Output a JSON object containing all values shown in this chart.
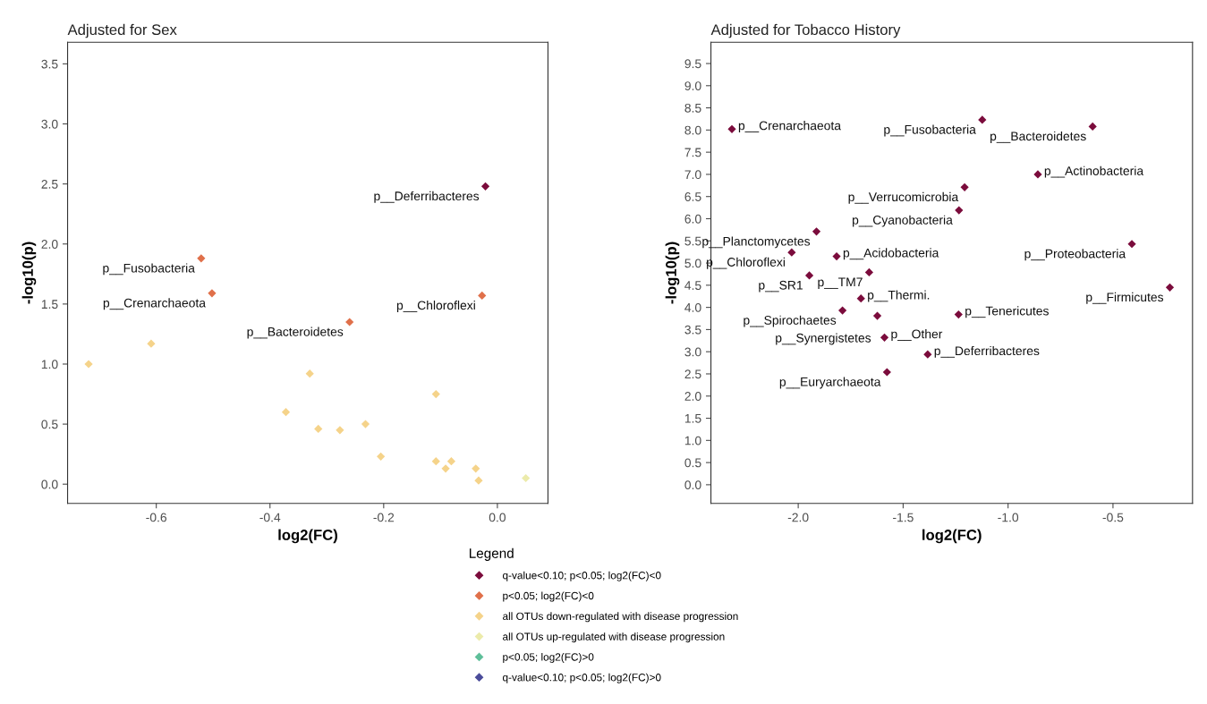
{
  "chart_data": [
    {
      "type": "scatter",
      "title": "Adjusted for Sex",
      "xlabel": "log2(FC)",
      "ylabel": "-log10(p)",
      "marker": "diamond",
      "grid": false,
      "legend": false,
      "xlim": [
        -0.756,
        0.089
      ],
      "ylim": [
        -0.16,
        3.68
      ],
      "xticks": [
        -0.6,
        -0.4,
        -0.2,
        {
          "value": 0,
          "label": "0.0"
        }
      ],
      "yticks": [
        {
          "value": 0,
          "label": "0.0"
        },
        0.5,
        {
          "value": 1,
          "label": "1.0"
        },
        1.5,
        {
          "value": 2,
          "label": "2.0"
        },
        2.5,
        {
          "value": 3,
          "label": "3.0"
        },
        3.5
      ],
      "series": [
        {
          "color": "#7b0c3c",
          "x": [
            -0.021
          ],
          "values": [
            2.48
          ]
        },
        {
          "color": "#e0704a",
          "x": [
            -0.521,
            -0.502,
            -0.027,
            -0.26
          ],
          "values": [
            1.88,
            1.59,
            1.57,
            1.35
          ]
        },
        {
          "color": "#f5d38a",
          "x": [
            -0.719,
            -0.609,
            -0.33,
            -0.372,
            -0.315,
            -0.277,
            -0.232,
            -0.205,
            -0.108,
            -0.108,
            -0.091,
            -0.081,
            -0.038,
            -0.033
          ],
          "values": [
            1.0,
            1.17,
            0.92,
            0.6,
            0.46,
            0.45,
            0.5,
            0.23,
            0.75,
            0.19,
            0.13,
            0.19,
            0.13,
            0.03
          ]
        },
        {
          "color": "#ecebab",
          "x": [
            0.05
          ],
          "values": [
            0.05
          ]
        }
      ],
      "annotations": [
        {
          "text": "p__Deferribacteres",
          "x": -0.021,
          "y": 2.48
        },
        {
          "text": "p__Fusobacteria",
          "x": -0.521,
          "y": 1.88
        },
        {
          "text": "p__Crenarchaeota",
          "x": -0.502,
          "y": 1.59
        },
        {
          "text": "p__Chloroflexi",
          "x": -0.027,
          "y": 1.57
        },
        {
          "text": "p__Bacteroidetes",
          "x": -0.26,
          "y": 1.35
        }
      ]
    },
    {
      "type": "scatter",
      "title": "Adjusted for Tobacco History",
      "xlabel": "log2(FC)",
      "ylabel": "-log10(p)",
      "marker": "diamond",
      "grid": false,
      "legend": "bottom",
      "legend_title": "Legend",
      "xlim": [
        -2.416,
        -0.121
      ],
      "ylim": [
        -0.42,
        9.98
      ],
      "xticks": [
        {
          "value": -2,
          "label": "-2.0"
        },
        -1.5,
        {
          "value": -1,
          "label": "-1.0"
        },
        -0.5
      ],
      "yticks": [
        {
          "value": 0,
          "label": "0.0"
        },
        0.5,
        {
          "value": 1,
          "label": "1.0"
        },
        1.5,
        {
          "value": 2,
          "label": "2.0"
        },
        2.5,
        {
          "value": 3,
          "label": "3.0"
        },
        3.5,
        {
          "value": 4,
          "label": "4.0"
        },
        4.5,
        {
          "value": 5,
          "label": "5.0"
        },
        5.5,
        {
          "value": 6,
          "label": "6.0"
        },
        6.5,
        {
          "value": 7,
          "label": "7.0"
        },
        7.5,
        {
          "value": 8,
          "label": "8.0"
        },
        8.5,
        {
          "value": 9,
          "label": "9.0"
        },
        9.5
      ],
      "series": [
        {
          "name": "q-value<0.10; p<0.05; log2(FC)<0",
          "color": "#7b0c3c",
          "x": [
            -2.316,
            -1.123,
            -0.597,
            -0.858,
            -1.207,
            -1.234,
            -1.913,
            -0.41,
            -2.031,
            -1.817,
            -1.662,
            -1.947,
            -0.229,
            -1.701,
            -1.789,
            -1.623,
            -1.236,
            -1.589,
            -1.383,
            -1.577
          ],
          "values": [
            8.02,
            8.23,
            8.08,
            7.0,
            6.71,
            6.19,
            5.71,
            5.43,
            5.24,
            5.15,
            4.79,
            4.72,
            4.45,
            4.2,
            3.93,
            3.81,
            3.84,
            3.32,
            2.94,
            2.54
          ]
        },
        {
          "name": "p<0.05; log2(FC)<0",
          "color": "#e0704a"
        },
        {
          "name": "all OTUs down-regulated with disease progression",
          "color": "#f5d38a"
        },
        {
          "name": "all OTUs up-regulated with disease progression",
          "color": "#ecebab"
        },
        {
          "name": "p<0.05; log2(FC)>0",
          "color": "#5fbf9a"
        },
        {
          "name": "q-value<0.10; p<0.05; log2(FC)>0",
          "color": "#4b4c9a"
        }
      ],
      "annotations": [
        {
          "text": "p__Crenarchaeota",
          "x": -2.316,
          "y": 8.02
        },
        {
          "text": "p__Fusobacteria",
          "x": -1.123,
          "y": 8.23
        },
        {
          "text": "p__Bacteroidetes",
          "x": -0.597,
          "y": 8.08
        },
        {
          "text": "p__Actinobacteria",
          "x": -0.858,
          "y": 7.0
        },
        {
          "text": "p__Verrucomicrobia",
          "x": -1.207,
          "y": 6.71
        },
        {
          "text": "p__Cyanobacteria",
          "x": -1.234,
          "y": 6.19
        },
        {
          "text": "p__Planctomycetes",
          "x": -1.913,
          "y": 5.71
        },
        {
          "text": "p__Proteobacteria",
          "x": -0.41,
          "y": 5.43
        },
        {
          "text": "p__Chloroflexi",
          "x": -2.031,
          "y": 5.24
        },
        {
          "text": "p__Acidobacteria",
          "x": -1.817,
          "y": 5.15
        },
        {
          "text": "p__TM7",
          "x": -1.662,
          "y": 4.79
        },
        {
          "text": "p__SR1",
          "x": -1.947,
          "y": 4.72
        },
        {
          "text": "p__Firmicutes",
          "x": -0.229,
          "y": 4.45
        },
        {
          "text": "p__Thermi.",
          "x": -1.701,
          "y": 4.2
        },
        {
          "text": "p__Spirochaetes",
          "x": -1.789,
          "y": 3.93
        },
        {
          "text": "p__Synergistetes",
          "x": -1.623,
          "y": 3.81
        },
        {
          "text": "p__Tenericutes",
          "x": -1.236,
          "y": 3.84
        },
        {
          "text": "p__Other",
          "x": -1.589,
          "y": 3.32
        },
        {
          "text": "p__Deferribacteres",
          "x": -1.383,
          "y": 2.94
        },
        {
          "text": "p__Euryarchaeota",
          "x": -1.577,
          "y": 2.54
        }
      ]
    }
  ]
}
